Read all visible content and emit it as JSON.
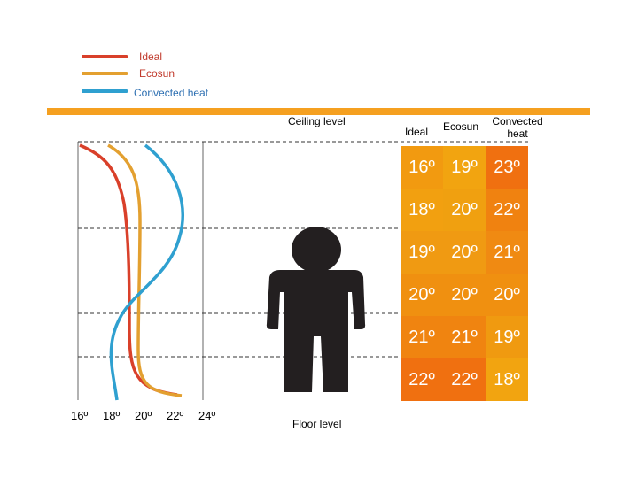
{
  "legend": [
    {
      "label": "Ideal",
      "color": "#d9402a"
    },
    {
      "label": "Ecosun",
      "color": "#e3a030"
    },
    {
      "label": "Convected heat",
      "color": "#2fa0d0"
    }
  ],
  "accent_color": "#f5a020",
  "ceiling_label": "Ceiling level",
  "floor_label": "Floor level",
  "columns": [
    "Ideal",
    "Ecosun",
    "Convected heat"
  ],
  "x_ticks": [
    "16º",
    "18º",
    "20º",
    "22º",
    "24º"
  ],
  "rows": [
    {
      "cells": [
        "16º",
        "19º",
        "23º"
      ],
      "colors": [
        "#f29a10",
        "#f2a410",
        "#f07010"
      ]
    },
    {
      "cells": [
        "18º",
        "20º",
        "22º"
      ],
      "colors": [
        "#f2a010",
        "#f0a010",
        "#f08210"
      ]
    },
    {
      "cells": [
        "19º",
        "20º",
        "21º"
      ],
      "colors": [
        "#f09a12",
        "#f09a12",
        "#f08a12"
      ]
    },
    {
      "cells": [
        "20º",
        "20º",
        "20º"
      ],
      "colors": [
        "#f09010",
        "#f09010",
        "#f09010"
      ]
    },
    {
      "cells": [
        "21º",
        "21º",
        "19º"
      ],
      "colors": [
        "#f08410",
        "#f08410",
        "#f09a10"
      ]
    },
    {
      "cells": [
        "22º",
        "22º",
        "18º"
      ],
      "colors": [
        "#f07010",
        "#f07010",
        "#f2a410"
      ]
    }
  ],
  "figure_icon": "person-silhouette-icon"
}
